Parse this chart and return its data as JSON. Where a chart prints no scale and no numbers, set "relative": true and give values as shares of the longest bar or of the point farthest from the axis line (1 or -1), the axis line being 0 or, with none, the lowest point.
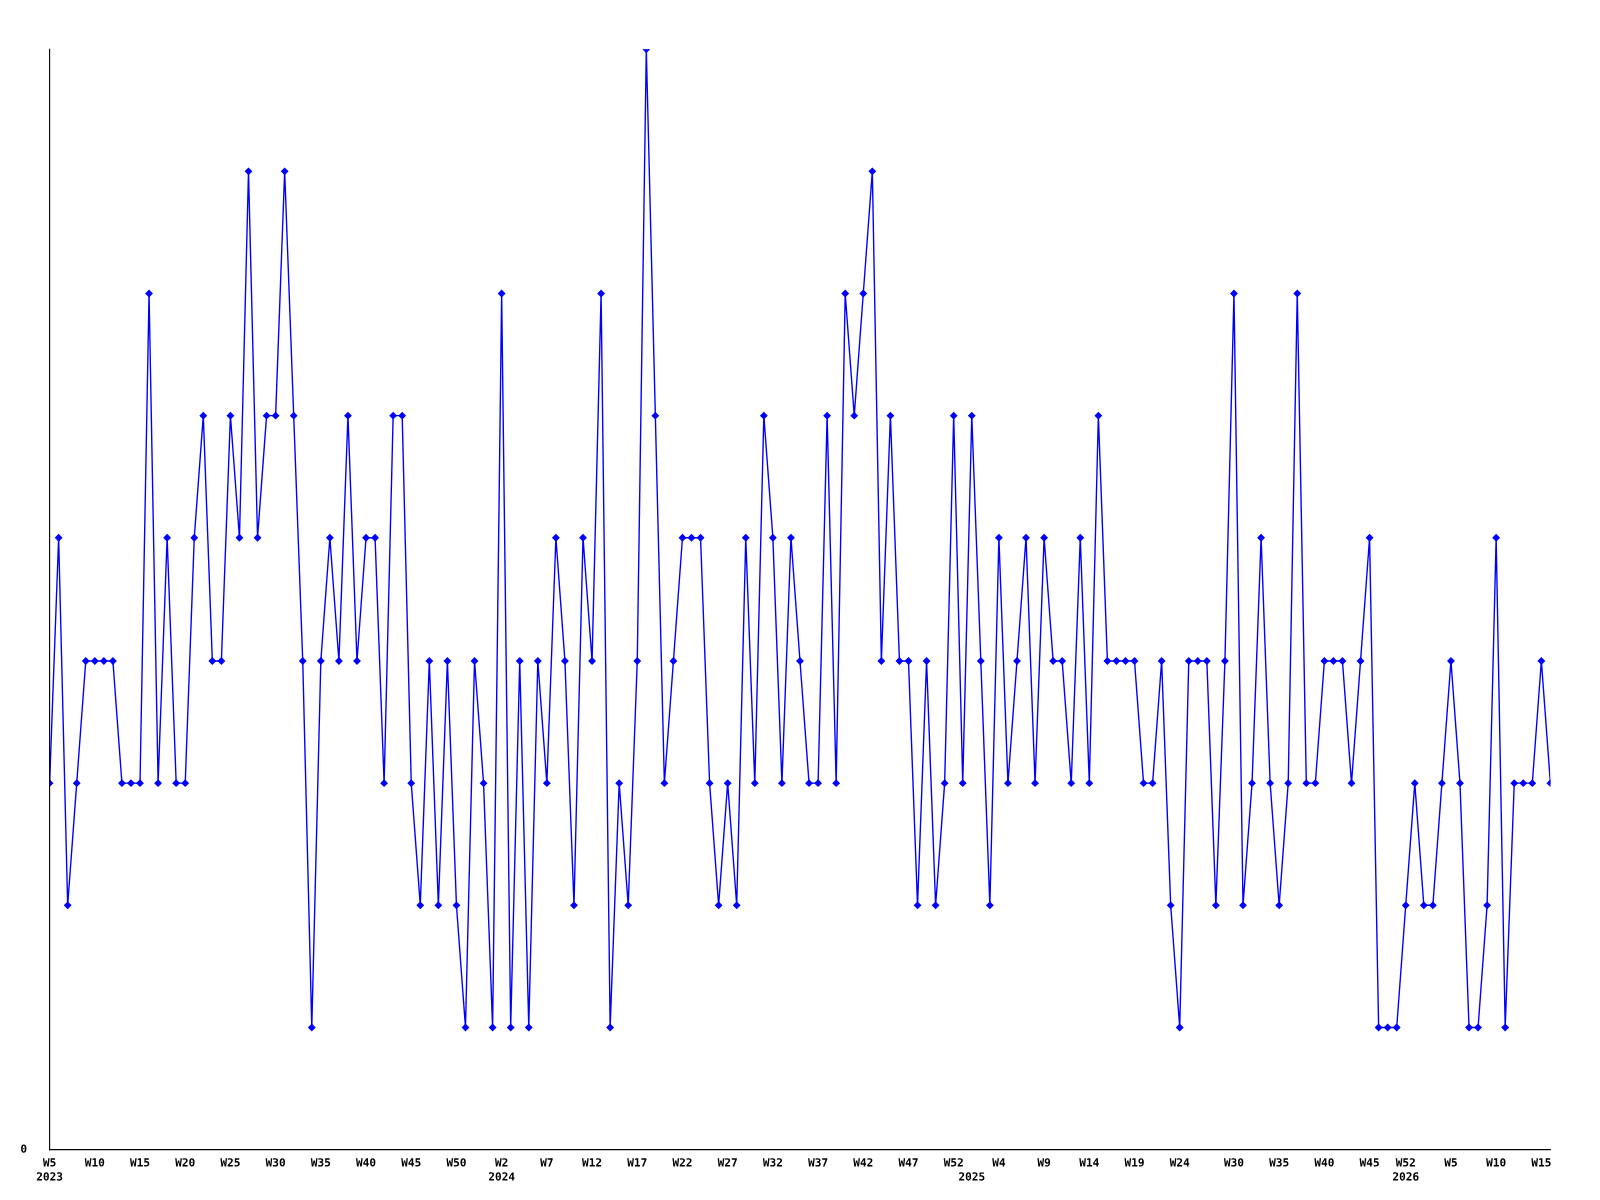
{
  "chart_data": {
    "type": "line",
    "relative": true,
    "marker": "diamond",
    "line_style": "solid",
    "annotations": [
      "0"
    ],
    "categories": [
      "W5\n2023",
      null,
      null,
      null,
      null,
      "W10",
      null,
      null,
      null,
      null,
      "W15",
      null,
      null,
      null,
      null,
      "W20",
      null,
      null,
      null,
      null,
      "W25",
      null,
      null,
      null,
      null,
      "W30",
      null,
      null,
      null,
      null,
      "W35",
      null,
      null,
      null,
      null,
      "W40",
      null,
      null,
      null,
      null,
      "W45",
      null,
      null,
      null,
      null,
      "W50",
      null,
      null,
      null,
      null,
      "W2\n2024",
      null,
      null,
      null,
      null,
      "W7",
      null,
      null,
      null,
      null,
      "W12",
      null,
      null,
      null,
      null,
      "W17",
      null,
      null,
      null,
      null,
      "W22",
      null,
      null,
      null,
      null,
      "W27",
      null,
      null,
      null,
      null,
      "W32",
      null,
      null,
      null,
      null,
      "W37",
      null,
      null,
      null,
      null,
      "W42",
      null,
      null,
      null,
      null,
      "W47",
      null,
      null,
      null,
      null,
      "W52",
      null,
      "\n2025",
      null,
      null,
      "W4",
      null,
      null,
      null,
      null,
      "W9",
      null,
      null,
      null,
      null,
      "W14",
      null,
      null,
      null,
      null,
      "W19",
      null,
      null,
      null,
      null,
      "W24",
      null,
      null,
      null,
      null,
      null,
      "W30",
      null,
      null,
      null,
      null,
      "W35",
      null,
      null,
      null,
      null,
      "W40",
      null,
      null,
      null,
      null,
      "W45",
      null,
      null,
      null,
      "W52\n2026",
      null,
      null,
      null,
      null,
      "W5",
      null,
      null,
      null,
      null,
      "W10",
      null,
      null,
      null,
      null,
      "W15",
      null
    ],
    "series": [
      {
        "color": "#0000ff",
        "values": [
          0.333,
          0.556,
          0.222,
          0.333,
          0.444,
          0.444,
          0.444,
          0.444,
          0.333,
          0.333,
          0.333,
          0.778,
          0.333,
          0.556,
          0.333,
          0.333,
          0.556,
          0.667,
          0.444,
          0.444,
          0.667,
          0.556,
          0.889,
          0.556,
          0.667,
          0.667,
          0.889,
          0.667,
          0.444,
          0.111,
          0.444,
          0.556,
          0.444,
          0.667,
          0.444,
          0.556,
          0.556,
          0.333,
          0.667,
          0.667,
          0.333,
          0.222,
          0.444,
          0.222,
          0.444,
          0.222,
          0.111,
          0.444,
          0.333,
          0.111,
          0.778,
          0.111,
          0.444,
          0.111,
          0.444,
          0.333,
          0.556,
          0.444,
          0.222,
          0.556,
          0.444,
          0.778,
          0.111,
          0.333,
          0.222,
          0.444,
          1,
          0.667,
          0.333,
          0.444,
          0.556,
          0.556,
          0.556,
          0.333,
          0.222,
          0.333,
          0.222,
          0.556,
          0.333,
          0.667,
          0.556,
          0.333,
          0.556,
          0.444,
          0.333,
          0.333,
          0.667,
          0.333,
          0.778,
          0.667,
          0.778,
          0.889,
          0.444,
          0.667,
          0.444,
          0.444,
          0.222,
          0.444,
          0.222,
          0.333,
          0.667,
          0.333,
          0.667,
          0.444,
          0.222,
          0.556,
          0.333,
          0.444,
          0.556,
          0.333,
          0.556,
          0.444,
          0.444,
          0.333,
          0.556,
          0.333,
          0.667,
          0.444,
          0.444,
          0.444,
          0.444,
          0.333,
          0.333,
          0.444,
          0.222,
          0.111,
          0.444,
          0.444,
          0.444,
          0.222,
          0.444,
          0.778,
          0.222,
          0.333,
          0.556,
          0.333,
          0.222,
          0.333,
          0.778,
          0.333,
          0.333,
          0.444,
          0.444,
          0.444,
          0.333,
          0.444,
          0.556,
          0.111,
          0.111,
          0.111,
          0.222,
          0.333,
          0.222,
          0.222,
          0.333,
          0.444,
          0.333,
          0.111,
          0.111,
          0.222,
          0.556,
          0.111,
          0.333,
          0.333,
          0.333,
          0.444,
          0.333
        ]
      }
    ]
  }
}
